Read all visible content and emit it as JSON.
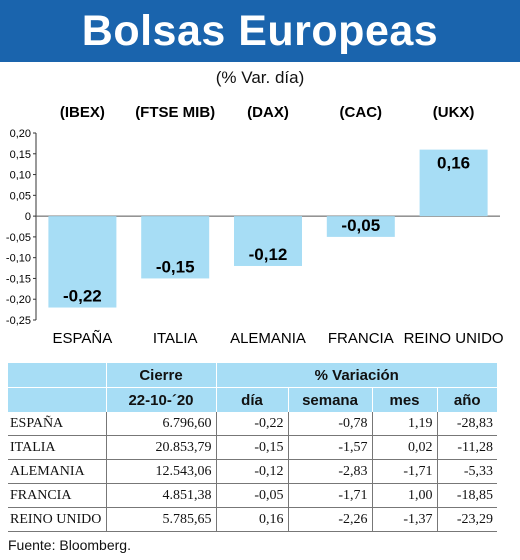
{
  "header": {
    "title": "Bolsas Europeas"
  },
  "subtitle": "(% Var. día)",
  "chart_data": {
    "type": "bar",
    "codes": [
      "(IBEX)",
      "(FTSE MIB)",
      "(DAX)",
      "(CAC)",
      "(UKX)"
    ],
    "categories": [
      "ESPAÑA",
      "ITALIA",
      "ALEMANIA",
      "FRANCIA",
      "REINO UNIDO"
    ],
    "values": [
      -0.22,
      -0.15,
      -0.12,
      -0.05,
      0.16
    ],
    "value_labels": [
      "-0,22",
      "-0,15",
      "-0,12",
      "-0,05",
      "0,16"
    ],
    "ylim": [
      -0.25,
      0.2
    ],
    "ticks": [
      0.2,
      0.15,
      0.1,
      0.05,
      0,
      -0.05,
      -0.1,
      -0.15,
      -0.2,
      -0.25
    ],
    "tick_labels": [
      "0,20",
      "0,15",
      "0,10",
      "0,05",
      "0",
      "-0,05",
      "-0,10",
      "-0,15",
      "-0,20",
      "-0,25"
    ],
    "bar_color": "#a7ddf5",
    "grid": false
  },
  "table": {
    "group_headers": [
      "Cierre",
      "% Variación"
    ],
    "sub_headers": [
      "22-10-´20",
      "día",
      "semana",
      "mes",
      "año"
    ],
    "rows": [
      {
        "name": "ESPAÑA",
        "cierre": "6.796,60",
        "dia": "-0,22",
        "semana": "-0,78",
        "mes": "1,19",
        "ano": "-28,83"
      },
      {
        "name": "ITALIA",
        "cierre": "20.853,79",
        "dia": "-0,15",
        "semana": "-1,57",
        "mes": "0,02",
        "ano": "-11,28"
      },
      {
        "name": "ALEMANIA",
        "cierre": "12.543,06",
        "dia": "-0,12",
        "semana": "-2,83",
        "mes": "-1,71",
        "ano": "-5,33"
      },
      {
        "name": "FRANCIA",
        "cierre": "4.851,38",
        "dia": "-0,05",
        "semana": "-1,71",
        "mes": "1,00",
        "ano": "-18,85"
      },
      {
        "name": "REINO UNIDO",
        "cierre": "5.785,65",
        "dia": "0,16",
        "semana": "-2,26",
        "mes": "-1,37",
        "ano": "-23,29"
      }
    ]
  },
  "source": "Fuente: Bloomberg."
}
